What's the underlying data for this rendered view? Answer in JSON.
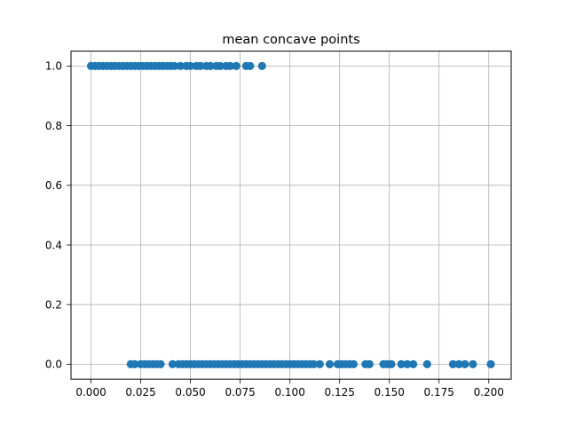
{
  "chart_data": {
    "type": "scatter",
    "title": "mean concave points",
    "xlabel": "",
    "ylabel": "",
    "xlim": [
      -0.01006,
      0.21126
    ],
    "ylim": [
      -0.05,
      1.05
    ],
    "xticks": [
      0.0,
      0.025,
      0.05,
      0.075,
      0.1,
      0.125,
      0.15,
      0.175,
      0.2
    ],
    "xtick_labels": [
      "0.000",
      "0.025",
      "0.050",
      "0.075",
      "0.100",
      "0.125",
      "0.150",
      "0.175",
      "0.200"
    ],
    "yticks": [
      0.0,
      0.2,
      0.4,
      0.6,
      0.8,
      1.0
    ],
    "ytick_labels": [
      "0.0",
      "0.2",
      "0.4",
      "0.6",
      "0.8",
      "1.0"
    ],
    "grid": true,
    "marker_color": "#1f77b4",
    "series": [
      {
        "name": "",
        "x": [
          0.0,
          0.002,
          0.004,
          0.006,
          0.008,
          0.01,
          0.012,
          0.014,
          0.016,
          0.018,
          0.02,
          0.022,
          0.024,
          0.026,
          0.028,
          0.03,
          0.032,
          0.034,
          0.036,
          0.038,
          0.04,
          0.042,
          0.045,
          0.048,
          0.05,
          0.053,
          0.055,
          0.058,
          0.06,
          0.063,
          0.065,
          0.068,
          0.07,
          0.073,
          0.078,
          0.08,
          0.086
        ],
        "y": [
          1,
          1,
          1,
          1,
          1,
          1,
          1,
          1,
          1,
          1,
          1,
          1,
          1,
          1,
          1,
          1,
          1,
          1,
          1,
          1,
          1,
          1,
          1,
          1,
          1,
          1,
          1,
          1,
          1,
          1,
          1,
          1,
          1,
          1,
          1,
          1,
          1
        ]
      },
      {
        "name": "",
        "x": [
          0.02,
          0.022,
          0.025,
          0.027,
          0.029,
          0.031,
          0.033,
          0.035,
          0.041,
          0.044,
          0.046,
          0.048,
          0.05,
          0.052,
          0.054,
          0.056,
          0.058,
          0.06,
          0.062,
          0.064,
          0.066,
          0.068,
          0.07,
          0.072,
          0.074,
          0.076,
          0.078,
          0.08,
          0.082,
          0.084,
          0.086,
          0.088,
          0.09,
          0.092,
          0.094,
          0.096,
          0.098,
          0.1,
          0.102,
          0.104,
          0.106,
          0.108,
          0.11,
          0.112,
          0.115,
          0.12,
          0.124,
          0.126,
          0.128,
          0.13,
          0.132,
          0.138,
          0.14,
          0.147,
          0.149,
          0.151,
          0.156,
          0.159,
          0.162,
          0.169,
          0.182,
          0.185,
          0.188,
          0.192,
          0.201
        ],
        "y": [
          0,
          0,
          0,
          0,
          0,
          0,
          0,
          0,
          0,
          0,
          0,
          0,
          0,
          0,
          0,
          0,
          0,
          0,
          0,
          0,
          0,
          0,
          0,
          0,
          0,
          0,
          0,
          0,
          0,
          0,
          0,
          0,
          0,
          0,
          0,
          0,
          0,
          0,
          0,
          0,
          0,
          0,
          0,
          0,
          0,
          0,
          0,
          0,
          0,
          0,
          0,
          0,
          0,
          0,
          0,
          0,
          0,
          0,
          0,
          0,
          0,
          0,
          0,
          0,
          0
        ]
      }
    ]
  }
}
